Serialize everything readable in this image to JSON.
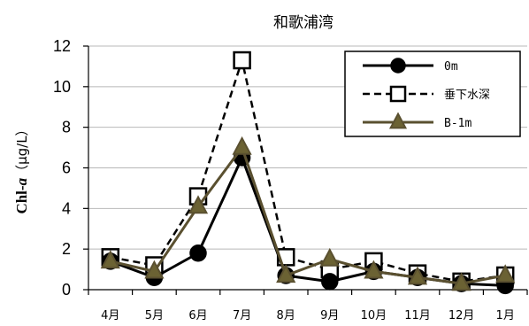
{
  "chart_data": {
    "type": "line",
    "title": "和歌浦湾",
    "ylabel": "Chl-a （μg/L）",
    "ylabel_parts": {
      "prefix": "Chl-",
      "italic": "a",
      "unit": "（μg/L）"
    },
    "xlabel": "",
    "categories": [
      "4月",
      "5月",
      "6月",
      "7月",
      "8月",
      "9月",
      "10月",
      "11月",
      "12月",
      "1月"
    ],
    "ylim": [
      0,
      12
    ],
    "yticks": [
      "0",
      "2",
      "4",
      "6",
      "8",
      "10",
      "12"
    ],
    "grid": {
      "horizontal": true,
      "vertical": false
    },
    "legend_position": "top-right",
    "series": [
      {
        "name": "0m",
        "values": [
          1.4,
          0.6,
          1.8,
          6.5,
          0.7,
          0.4,
          0.9,
          0.6,
          0.3,
          0.2
        ],
        "color": "#000000",
        "line": "solid",
        "marker": "circle-filled"
      },
      {
        "name": "垂下水深",
        "values": [
          1.6,
          1.2,
          4.6,
          11.3,
          1.6,
          1.0,
          1.4,
          0.8,
          0.4,
          0.7
        ],
        "color": "#000000",
        "line": "dashed",
        "marker": "square-open"
      },
      {
        "name": "B-1m",
        "values": [
          1.4,
          0.9,
          4.1,
          7.0,
          0.7,
          1.5,
          0.9,
          0.6,
          0.3,
          0.7
        ],
        "color": "#5a5030",
        "marker_fill": "#6b6233",
        "line": "solid",
        "marker": "triangle-filled"
      }
    ]
  }
}
